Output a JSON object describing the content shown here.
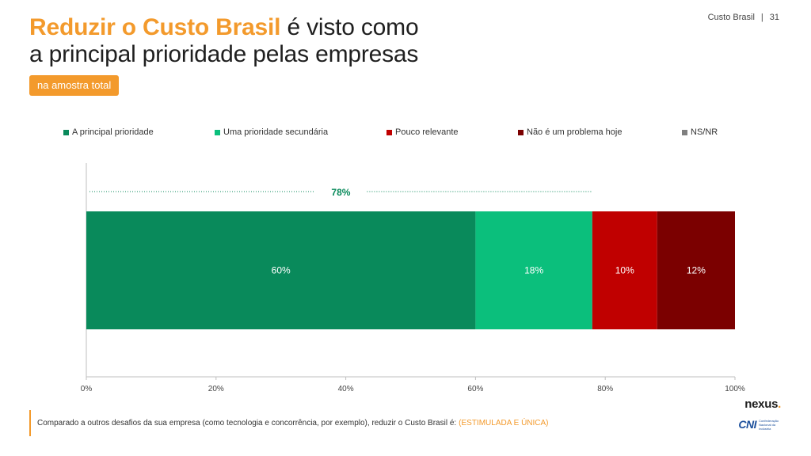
{
  "header": {
    "title_highlight": "Reduzir o Custo Brasil",
    "title_line1_rest": " é visto como",
    "title_line2": "a principal prioridade pelas empresas",
    "badge": "na amostra total",
    "page_section": "Custo Brasil",
    "page_sep": "|",
    "page_number": "31"
  },
  "colors": {
    "accent": "#f39a2c",
    "dark_green": "#098a5b",
    "light_green": "#0bbf7c",
    "red": "#c00000",
    "dark_red": "#7b0000",
    "gray": "#7f7f7f"
  },
  "chart_data": {
    "type": "bar",
    "orientation": "horizontal-stacked",
    "categories": [
      ""
    ],
    "series": [
      {
        "name": "A principal prioridade",
        "values": [
          60
        ],
        "color": "#098a5b",
        "label": "60%"
      },
      {
        "name": "Uma prioridade secundária",
        "values": [
          18
        ],
        "color": "#0bbf7c",
        "label": "18%"
      },
      {
        "name": "Pouco relevante",
        "values": [
          10
        ],
        "color": "#c00000",
        "label": "10%"
      },
      {
        "name": "Não é um problema hoje",
        "values": [
          12
        ],
        "color": "#7b0000",
        "label": "12%"
      },
      {
        "name": "NS/NR",
        "values": [
          0
        ],
        "color": "#7f7f7f",
        "label": ""
      }
    ],
    "xlim": [
      0,
      100
    ],
    "x_ticks": [
      0,
      20,
      40,
      60,
      80,
      100
    ],
    "x_tick_labels": [
      "0%",
      "20%",
      "40%",
      "60%",
      "80%",
      "100%"
    ],
    "annotation": {
      "text": "78%",
      "from": 0,
      "to": 78,
      "color": "#098a5b"
    },
    "legend_position": "top",
    "grid": false
  },
  "footer": {
    "question": "Comparado a outros desafios da sua empresa (como tecnologia e concorrência, por exemplo), reduzir o Custo Brasil é:",
    "qualifier": "(ESTIMULADA E ÚNICA)"
  },
  "logos": {
    "nexus": "nexus",
    "nexus_dot": ".",
    "cni": "CNI",
    "cni_caption": "Confederação Nacional da Indústria"
  }
}
